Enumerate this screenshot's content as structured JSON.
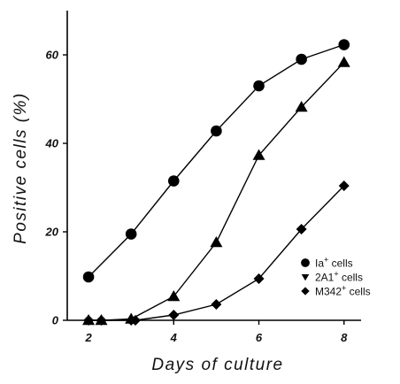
{
  "chart_data": {
    "type": "line",
    "title": "",
    "xlabel": "Days of culture",
    "ylabel": "Positive cells (%)",
    "x_ticks": [
      2,
      4,
      6,
      8
    ],
    "y_ticks": [
      0,
      20,
      40,
      60
    ],
    "xlim": [
      1.5,
      8.4
    ],
    "ylim": [
      0,
      70
    ],
    "grid": false,
    "legend_position": "bottom-right",
    "series": [
      {
        "name": "Ia",
        "name_sup": "+",
        "name_suffix": "cells",
        "marker": "circle",
        "x": [
          2,
          3,
          4,
          5,
          6,
          7,
          8
        ],
        "y": [
          9.8,
          19.5,
          31.5,
          42.8,
          53,
          59,
          62.3
        ]
      },
      {
        "name": "2A1",
        "name_sup": "+",
        "name_suffix": "cells",
        "marker": "triangle",
        "x": [
          2,
          2.3,
          3,
          4,
          5,
          6,
          7,
          8
        ],
        "y": [
          0,
          0,
          0.3,
          5.4,
          17.6,
          37.3,
          48.2,
          58.3
        ]
      },
      {
        "name": "M342",
        "name_sup": "+",
        "name_suffix": "cells",
        "marker": "diamond",
        "x": [
          2,
          2.3,
          3,
          3.1,
          4,
          5,
          6,
          7,
          8
        ],
        "y": [
          0,
          0,
          0,
          0,
          1.2,
          3.6,
          9.4,
          20.6,
          30.4
        ]
      }
    ]
  }
}
